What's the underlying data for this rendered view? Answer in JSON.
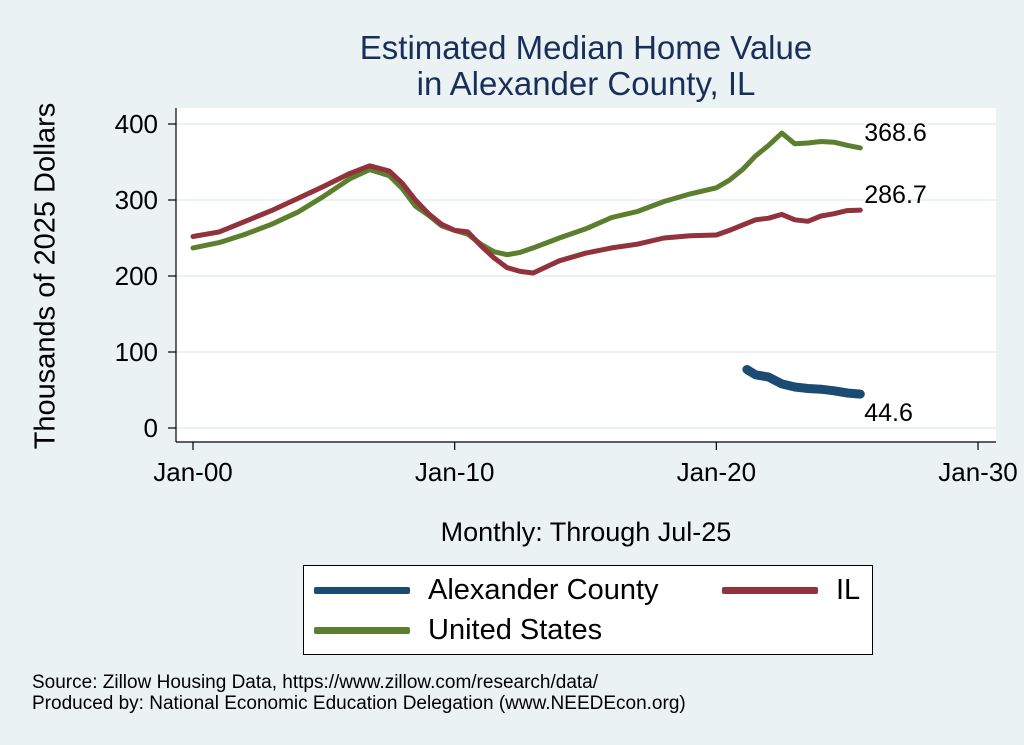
{
  "chart_data": {
    "type": "line",
    "title": [
      "Estimated Median Home Value",
      "in Alexander County, IL"
    ],
    "xlabel": "Monthly: Through Jul-25",
    "ylabel": "Thousands of 2025 Dollars",
    "x_ticks": [
      "Jan-00",
      "Jan-10",
      "Jan-20",
      "Jan-30"
    ],
    "x_tick_years": [
      2000,
      2010,
      2020,
      2030
    ],
    "xlim": [
      2000,
      2030
    ],
    "y_ticks": [
      0,
      100,
      200,
      300,
      400
    ],
    "ylim": [
      0,
      400
    ],
    "grid": true,
    "legend_position": "bottom",
    "series": [
      {
        "name": "Alexander County",
        "color": "#1b4a73",
        "end_label": "44.6",
        "points": [
          [
            2021.17,
            77
          ],
          [
            2021.5,
            70
          ],
          [
            2022.0,
            67
          ],
          [
            2022.5,
            58
          ],
          [
            2023.0,
            54
          ],
          [
            2023.5,
            52
          ],
          [
            2024.0,
            51
          ],
          [
            2024.5,
            49
          ],
          [
            2025.0,
            46
          ],
          [
            2025.5,
            44.6
          ]
        ]
      },
      {
        "name": "IL",
        "color": "#92323c",
        "end_label": "286.7",
        "points": [
          [
            2000.0,
            252
          ],
          [
            2001.0,
            258
          ],
          [
            2002.0,
            272
          ],
          [
            2003.0,
            286
          ],
          [
            2004.0,
            302
          ],
          [
            2005.0,
            318
          ],
          [
            2006.0,
            335
          ],
          [
            2006.75,
            345
          ],
          [
            2007.5,
            338
          ],
          [
            2008.0,
            322
          ],
          [
            2008.5,
            300
          ],
          [
            2009.0,
            282
          ],
          [
            2009.5,
            268
          ],
          [
            2010.0,
            260
          ],
          [
            2010.5,
            258
          ],
          [
            2011.0,
            240
          ],
          [
            2011.5,
            224
          ],
          [
            2012.0,
            211
          ],
          [
            2012.5,
            206
          ],
          [
            2013.0,
            204
          ],
          [
            2013.5,
            212
          ],
          [
            2014.0,
            220
          ],
          [
            2015.0,
            230
          ],
          [
            2016.0,
            237
          ],
          [
            2017.0,
            242
          ],
          [
            2018.0,
            250
          ],
          [
            2019.0,
            253
          ],
          [
            2020.0,
            254
          ],
          [
            2020.5,
            260
          ],
          [
            2021.0,
            267
          ],
          [
            2021.5,
            274
          ],
          [
            2022.0,
            276
          ],
          [
            2022.5,
            281
          ],
          [
            2023.0,
            274
          ],
          [
            2023.5,
            272
          ],
          [
            2024.0,
            279
          ],
          [
            2024.5,
            282
          ],
          [
            2025.0,
            286
          ],
          [
            2025.5,
            286.7
          ]
        ]
      },
      {
        "name": "United States",
        "color": "#5b7f2e",
        "end_label": "368.6",
        "points": [
          [
            2000.0,
            237
          ],
          [
            2001.0,
            244
          ],
          [
            2002.0,
            255
          ],
          [
            2003.0,
            268
          ],
          [
            2004.0,
            284
          ],
          [
            2005.0,
            305
          ],
          [
            2006.0,
            328
          ],
          [
            2006.75,
            340
          ],
          [
            2007.5,
            332
          ],
          [
            2008.0,
            315
          ],
          [
            2008.5,
            292
          ],
          [
            2009.0,
            280
          ],
          [
            2009.5,
            266
          ],
          [
            2010.0,
            260
          ],
          [
            2010.5,
            255
          ],
          [
            2011.0,
            242
          ],
          [
            2011.5,
            232
          ],
          [
            2012.0,
            228
          ],
          [
            2012.5,
            231
          ],
          [
            2013.0,
            237
          ],
          [
            2014.0,
            250
          ],
          [
            2015.0,
            262
          ],
          [
            2016.0,
            277
          ],
          [
            2017.0,
            285
          ],
          [
            2018.0,
            298
          ],
          [
            2019.0,
            308
          ],
          [
            2020.0,
            316
          ],
          [
            2020.5,
            326
          ],
          [
            2021.0,
            340
          ],
          [
            2021.5,
            358
          ],
          [
            2022.0,
            372
          ],
          [
            2022.5,
            388
          ],
          [
            2023.0,
            374
          ],
          [
            2023.5,
            375
          ],
          [
            2024.0,
            377
          ],
          [
            2024.5,
            376
          ],
          [
            2025.0,
            372
          ],
          [
            2025.5,
            368.6
          ]
        ]
      }
    ]
  },
  "source_text": "Source: Zillow Housing Data, https://www.zillow.com/research/data/",
  "produced_text": "Produced by: National Economic Education Delegation (www.NEEDEcon.org)"
}
